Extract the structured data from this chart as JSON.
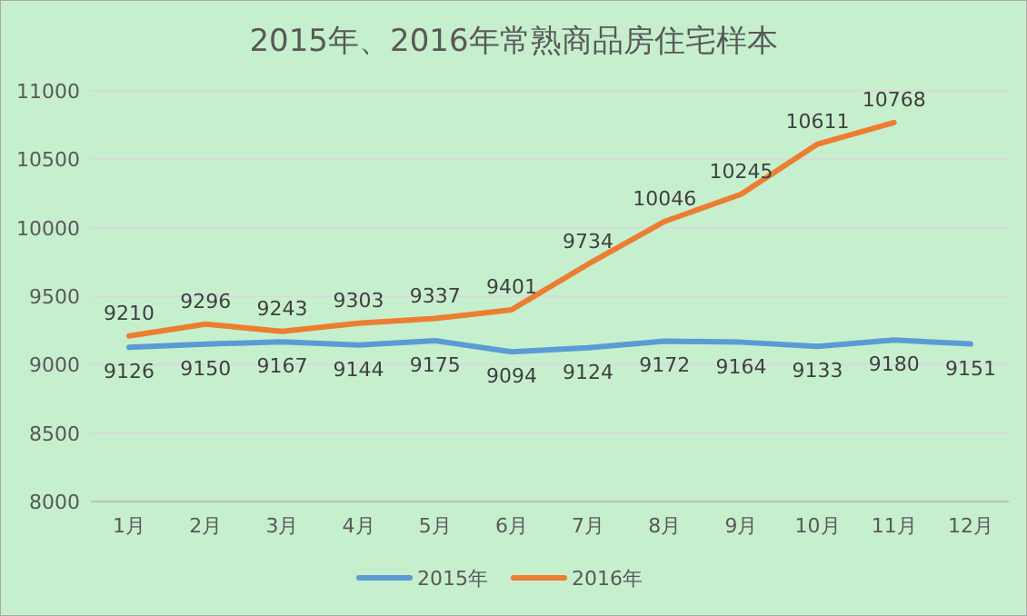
{
  "chart_data": {
    "type": "line",
    "title": "2015年、2016年常熟商品房住宅样本",
    "categories": [
      "1月",
      "2月",
      "3月",
      "4月",
      "5月",
      "6月",
      "7月",
      "8月",
      "9月",
      "10月",
      "11月",
      "12月"
    ],
    "series": [
      {
        "name": "2015年",
        "color": "#5b9bd5",
        "values": [
          9126,
          9150,
          9167,
          9144,
          9175,
          9094,
          9124,
          9172,
          9164,
          9133,
          9180,
          9151
        ]
      },
      {
        "name": "2016年",
        "color": "#ed7d31",
        "values": [
          9210,
          9296,
          9243,
          9303,
          9337,
          9401,
          9734,
          10046,
          10245,
          10611,
          10768,
          null
        ]
      }
    ],
    "ylim": [
      8000,
      11000
    ],
    "yticks": [
      8000,
      8500,
      9000,
      9500,
      10000,
      10500,
      11000
    ],
    "grid": "y",
    "legend": "bottom",
    "data_labels": true,
    "marker": "none",
    "line_style": "solid"
  }
}
